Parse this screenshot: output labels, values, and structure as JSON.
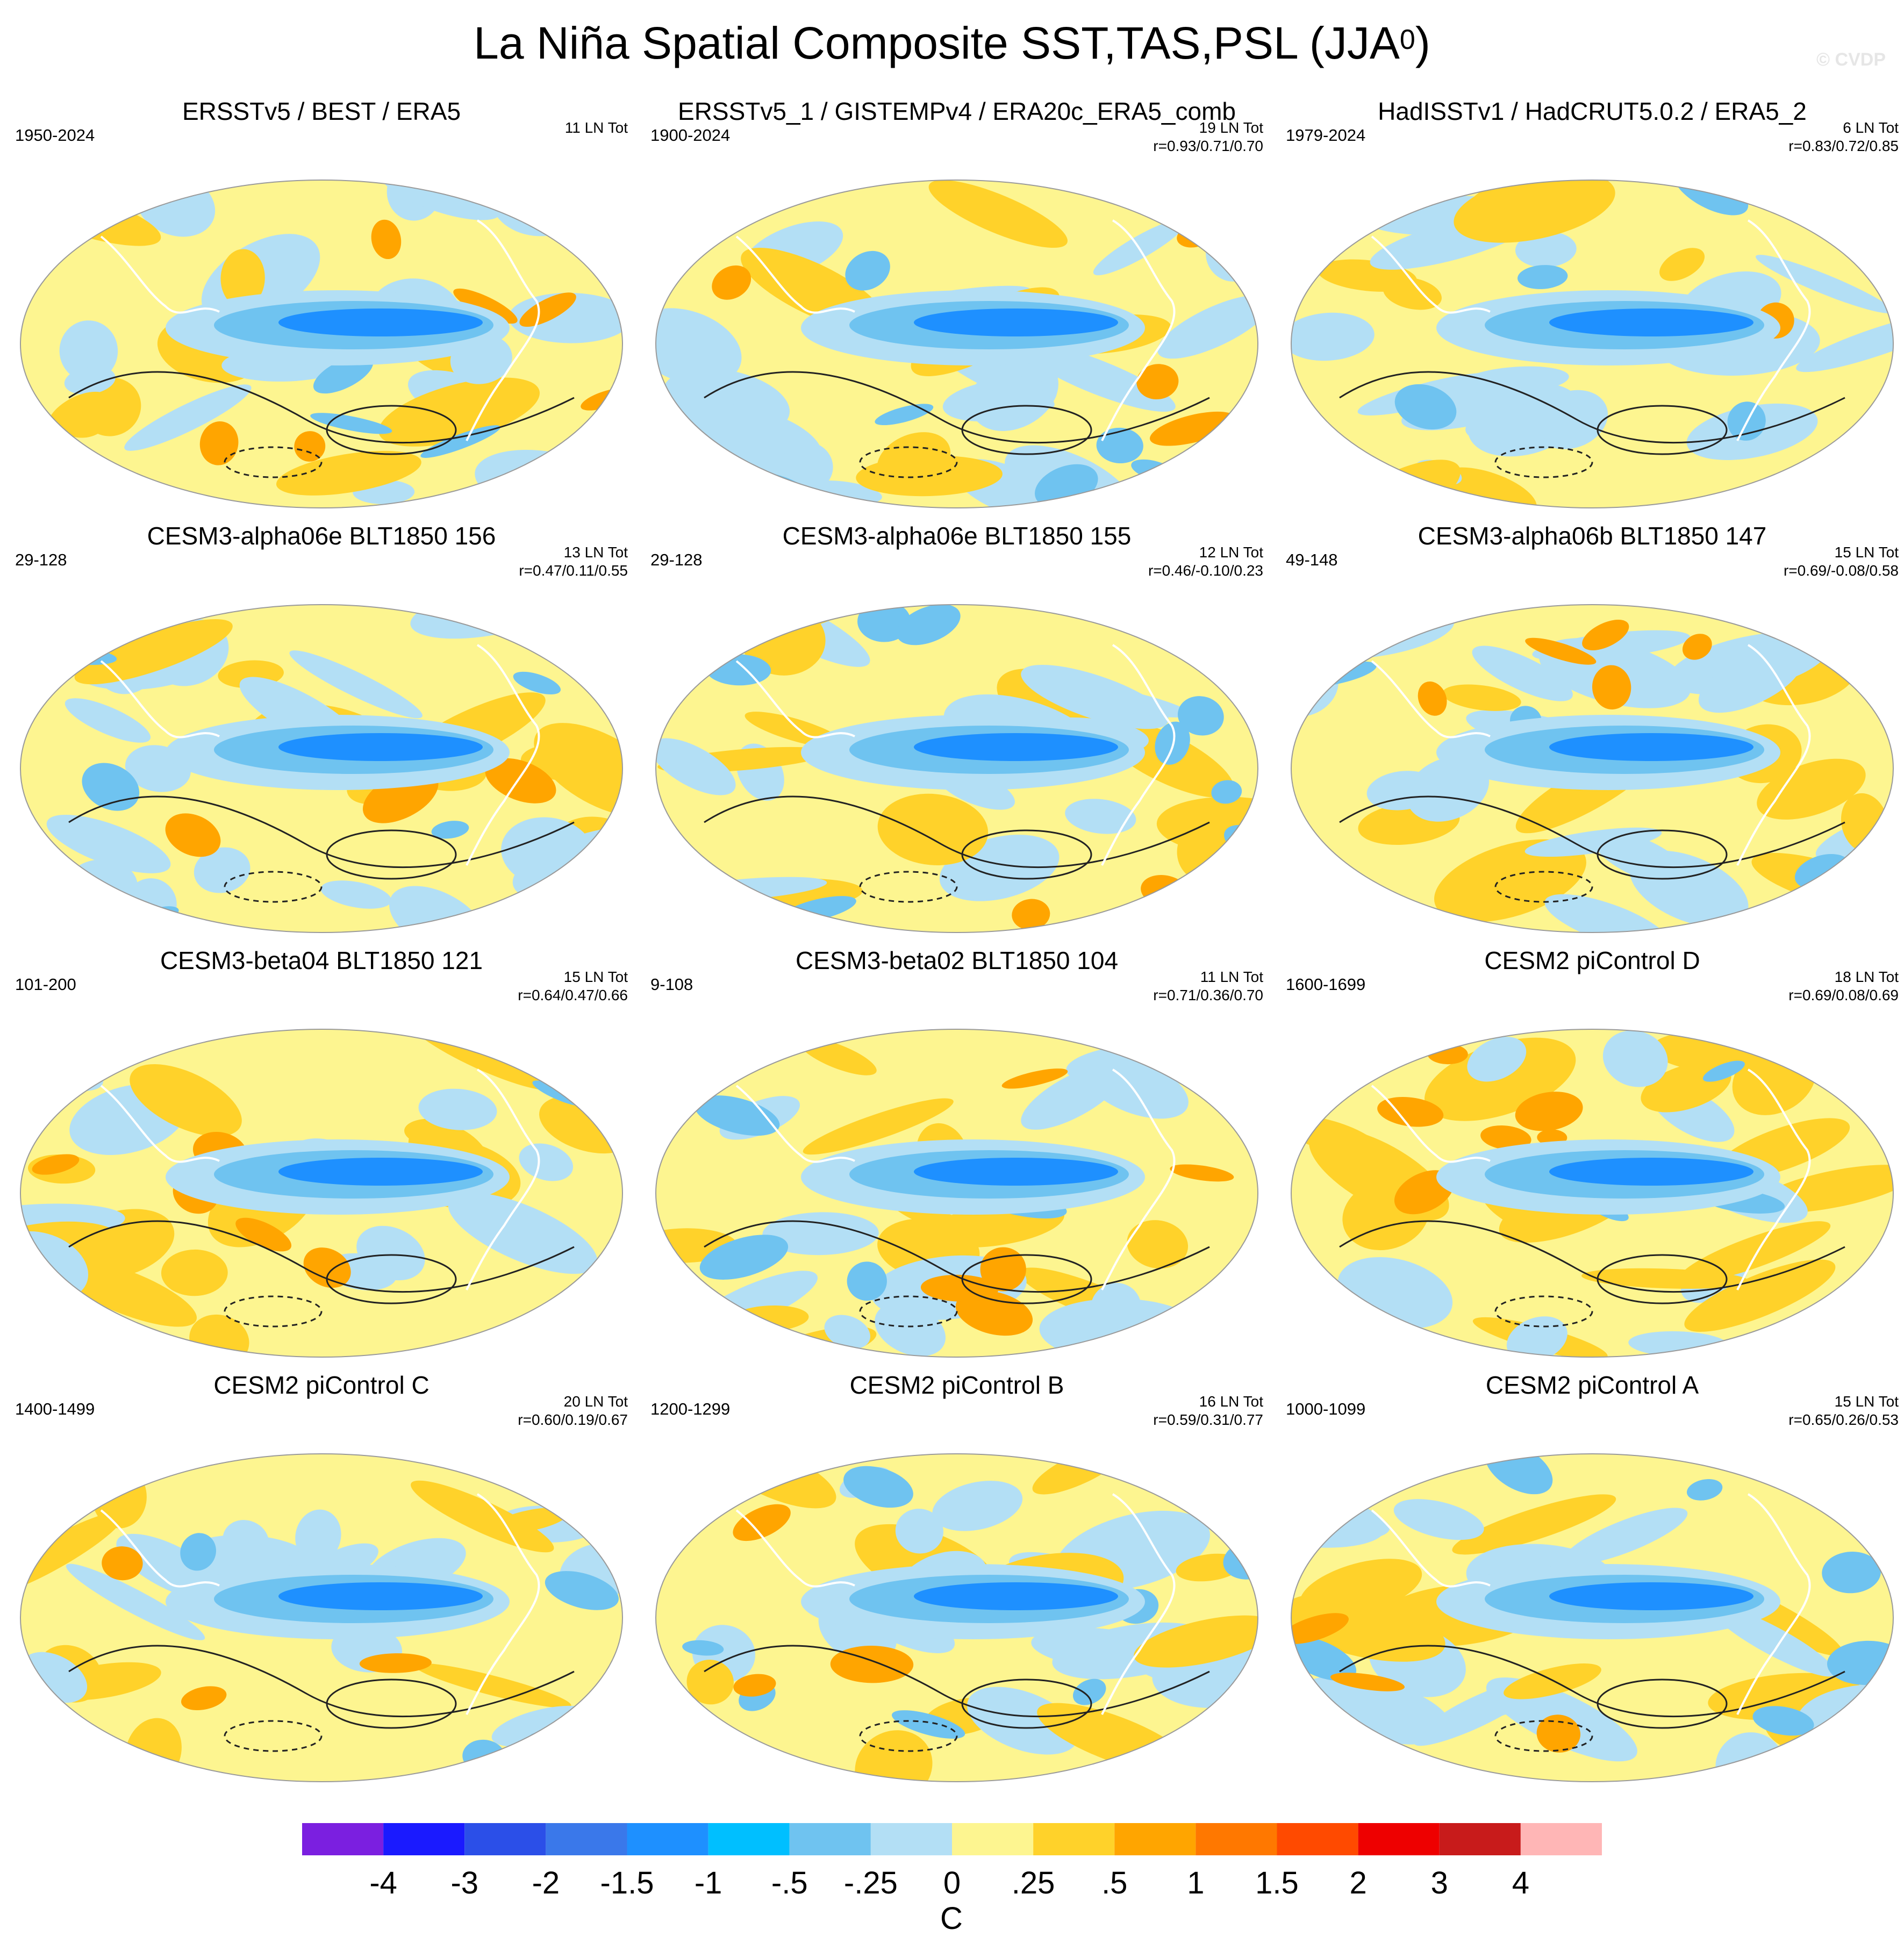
{
  "figure": {
    "title": "La Niña Spatial Composite SST,TAS,PSL (JJA",
    "title_sup": "0",
    "title_end": ")",
    "watermark": "© CVDP"
  },
  "panels": [
    {
      "title": "ERSSTv5 / BEST / ERA5",
      "period": "1950-2024",
      "count": "11 LN Tot",
      "corr": ""
    },
    {
      "title": "ERSSTv5_1 / GISTEMPv4 / ERA20c_ERA5_comb",
      "period": "1900-2024",
      "count": "19 LN Tot",
      "corr": "r=0.93/0.71/0.70"
    },
    {
      "title": "HadISSTv1 / HadCRUT5.0.2 / ERA5_2",
      "period": "1979-2024",
      "count": "6 LN Tot",
      "corr": "r=0.83/0.72/0.85"
    },
    {
      "title": "CESM3-alpha06e BLT1850 156",
      "period": "29-128",
      "count": "13 LN Tot",
      "corr": "r=0.47/0.11/0.55"
    },
    {
      "title": "CESM3-alpha06e BLT1850 155",
      "period": "29-128",
      "count": "12 LN Tot",
      "corr": "r=0.46/-0.10/0.23"
    },
    {
      "title": "CESM3-alpha06b BLT1850 147",
      "period": "49-148",
      "count": "15 LN Tot",
      "corr": "r=0.69/-0.08/0.58"
    },
    {
      "title": "CESM3-beta04 BLT1850 121",
      "period": "101-200",
      "count": "15 LN Tot",
      "corr": "r=0.64/0.47/0.66"
    },
    {
      "title": "CESM3-beta02 BLT1850 104",
      "period": "9-108",
      "count": "11 LN Tot",
      "corr": "r=0.71/0.36/0.70"
    },
    {
      "title": "CESM2 piControl D",
      "period": "1600-1699",
      "count": "18 LN Tot",
      "corr": "r=0.69/0.08/0.69"
    },
    {
      "title": "CESM2 piControl C",
      "period": "1400-1499",
      "count": "20 LN Tot",
      "corr": "r=0.60/0.19/0.67"
    },
    {
      "title": "CESM2 piControl B",
      "period": "1200-1299",
      "count": "16 LN Tot",
      "corr": "r=0.59/0.31/0.77"
    },
    {
      "title": "CESM2 piControl A",
      "period": "1000-1099",
      "count": "15 LN Tot",
      "corr": "r=0.65/0.26/0.53"
    }
  ],
  "colorbar": {
    "colors": [
      "#7b1fe0",
      "#1a1aff",
      "#2b4fe8",
      "#3a78ea",
      "#1e90ff",
      "#00bfff",
      "#6fc3f0",
      "#b3dff5",
      "#fdf590",
      "#ffd22a",
      "#ffa500",
      "#ff7800",
      "#ff4a00",
      "#ee0000",
      "#c81b1b",
      "#ffb6b6"
    ],
    "labels": [
      "-4",
      "-3",
      "-2",
      "-1.5",
      "-1",
      "-.5",
      "-.25",
      "0",
      ".25",
      ".5",
      "1",
      "1.5",
      "2",
      "3",
      "4"
    ],
    "unit": "C"
  },
  "palette": {
    "cold_strong": "#1e90ff",
    "cold_mid": "#6fc3f0",
    "cold_weak": "#b3dff5",
    "warm_weak": "#fdf590",
    "warm_mid": "#ffd22a",
    "warm_strong": "#ffa500",
    "hot": "#ff4a00"
  }
}
